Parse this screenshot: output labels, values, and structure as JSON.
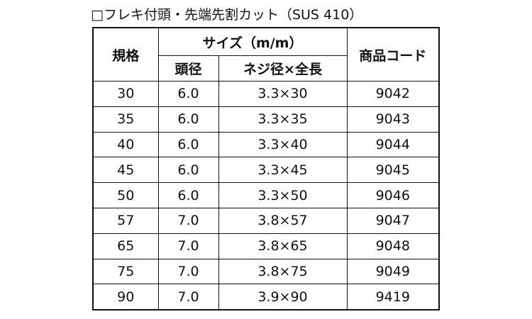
{
  "header": {
    "title": "□フレキ付頭・先端先割カット（SUS 410）"
  },
  "table": {
    "columns": {
      "spec": "規格",
      "size": "サイズ（m/m）",
      "head": "頭径",
      "screw": "ネジ径×全長",
      "code": "商品コード"
    },
    "rows": [
      [
        "30",
        "6.0",
        "3.3×30",
        "9042"
      ],
      [
        "35",
        "6.0",
        "3.3×35",
        "9043"
      ],
      [
        "40",
        "6.0",
        "3.3×40",
        "9044"
      ],
      [
        "45",
        "6.0",
        "3.3×45",
        "9045"
      ],
      [
        "50",
        "6.0",
        "3.3×50",
        "9046"
      ],
      [
        "57",
        "7.0",
        "3.8×57",
        "9047"
      ],
      [
        "65",
        "7.0",
        "3.8×65",
        "9048"
      ],
      [
        "75",
        "7.0",
        "3.8×75",
        "9049"
      ],
      [
        "90",
        "7.0",
        "3.9×90",
        "9419"
      ]
    ]
  }
}
